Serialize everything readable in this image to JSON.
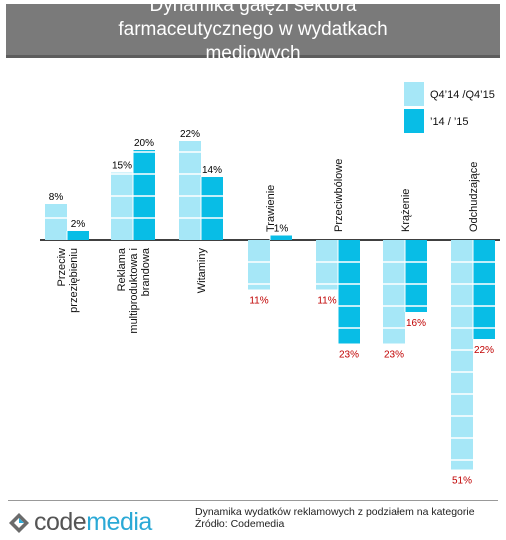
{
  "title": "Dynamika gałęzi sektora farmaceutycznego w wydatkach mediowych",
  "legend": [
    "Q4’14 /Q4’15",
    "’14 / ’15"
  ],
  "colors": {
    "series1": "#a6e7f7",
    "series2": "#08bde6",
    "positive_label": "#000000",
    "negative_label": "#c00000",
    "banner": "#7a7a7a"
  },
  "chart_data": {
    "type": "bar",
    "categories": [
      "Przeciw przeziębieniu",
      "Reklama multiproduktowa i brandowa",
      "Witaminy",
      "Trawienie",
      "Przeciwbólowe",
      "Krążenie",
      "Odchudzające"
    ],
    "series": [
      {
        "name": "Q4’14 /Q4’15",
        "values": [
          8,
          15,
          22,
          -11,
          -11,
          -23,
          -51
        ]
      },
      {
        "name": "’14 / ’15",
        "values": [
          2,
          20,
          14,
          1,
          -23,
          -16,
          -22
        ]
      }
    ],
    "data_labels": [
      [
        "8%",
        "15%",
        "22%",
        "11%",
        "11%",
        "23%",
        "51%"
      ],
      [
        "2%",
        "20%",
        "14%",
        "1%",
        "23%",
        "16%",
        "22%"
      ]
    ],
    "legend_position": "top-right",
    "grid": false
  },
  "footer": {
    "logo_text_a": "code",
    "logo_text_b": "media",
    "caption": "Dynamika  wydatków reklamowych z podziałem na kategorie",
    "source": "Źródło: Codemedia"
  }
}
